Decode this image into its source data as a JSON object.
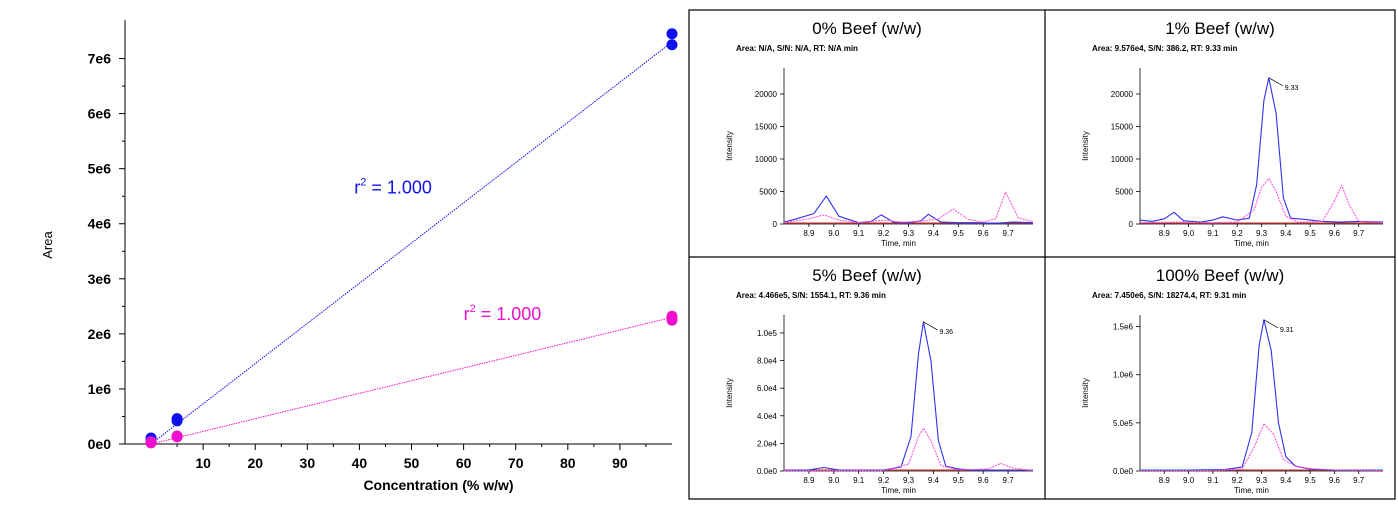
{
  "chart_data": [
    {
      "type": "scatter",
      "title": "",
      "xlabel": "Concentration (% w/w)",
      "ylabel": "Area",
      "xlim": [
        -5,
        100
      ],
      "ylim": [
        0,
        7700000
      ],
      "x_ticks": [
        10,
        20,
        30,
        40,
        50,
        60,
        70,
        80,
        90
      ],
      "y_ticks": [
        {
          "value": 0,
          "label": "0e0"
        },
        {
          "value": 1000000,
          "label": "1e6"
        },
        {
          "value": 2000000,
          "label": "2e6"
        },
        {
          "value": 3000000,
          "label": "3e6"
        },
        {
          "value": 4000000,
          "label": "4e6"
        },
        {
          "value": 5000000,
          "label": "5e6"
        },
        {
          "value": 6000000,
          "label": "6e6"
        },
        {
          "value": 7000000,
          "label": "7e6"
        }
      ],
      "grid": false,
      "series": [
        {
          "color": "#1010ee",
          "points": [
            [
              0,
              60000
            ],
            [
              0,
              110000
            ],
            [
              5,
              420000
            ],
            [
              5,
              460000
            ],
            [
              100,
              7250000
            ],
            [
              100,
              7450000
            ]
          ],
          "fit_line": [
            [
              0,
              0
            ],
            [
              100,
              7300000
            ]
          ],
          "annotation": {
            "text": "r",
            "sup": "2",
            "rest": " = 1.000",
            "x": 39,
            "y": 4550000
          }
        },
        {
          "color": "#ee10cc",
          "points": [
            [
              0,
              20000
            ],
            [
              0,
              40000
            ],
            [
              5,
              130000
            ],
            [
              5,
              145000
            ],
            [
              100,
              2250000
            ],
            [
              100,
              2320000
            ]
          ],
          "fit_line": [
            [
              0,
              0
            ],
            [
              100,
              2300000
            ]
          ],
          "annotation": {
            "text": "r",
            "sup": "2",
            "rest": " = 1.000",
            "x": 60,
            "y": 2250000
          }
        }
      ]
    },
    {
      "type": "line",
      "title": "0% Beef (w/w)",
      "info": "Area: N/A, S/N: N/A, RT: N/A min",
      "xlabel": "Time, min",
      "ylabel": "Intensity",
      "xlim": [
        8.8,
        9.8
      ],
      "ylim": [
        0,
        24000
      ],
      "x_ticks": [
        "8.9",
        "9.0",
        "9.1",
        "9.2",
        "9.3",
        "9.4",
        "9.5",
        "9.6",
        "9.7"
      ],
      "y_ticks": [
        {
          "value": 0,
          "label": "0"
        },
        {
          "value": 5000,
          "label": "5000"
        },
        {
          "value": 10000,
          "label": "10000"
        },
        {
          "value": 15000,
          "label": "15000"
        },
        {
          "value": 20000,
          "label": "20000"
        }
      ],
      "peak_label": "",
      "series": [
        {
          "color": "#3030ee",
          "points": [
            [
              8.8,
              300
            ],
            [
              8.85,
              800
            ],
            [
              8.92,
              1600
            ],
            [
              8.97,
              4300
            ],
            [
              9.02,
              1200
            ],
            [
              9.1,
              200
            ],
            [
              9.15,
              400
            ],
            [
              9.19,
              1400
            ],
            [
              9.24,
              300
            ],
            [
              9.3,
              200
            ],
            [
              9.35,
              500
            ],
            [
              9.38,
              1500
            ],
            [
              9.43,
              300
            ],
            [
              9.5,
              200
            ],
            [
              9.58,
              200
            ],
            [
              9.65,
              100
            ],
            [
              9.72,
              300
            ],
            [
              9.8,
              200
            ]
          ]
        },
        {
          "color": "#ff55dd",
          "dashed": true,
          "points": [
            [
              8.8,
              200
            ],
            [
              8.9,
              800
            ],
            [
              8.96,
              1400
            ],
            [
              9.02,
              600
            ],
            [
              9.1,
              200
            ],
            [
              9.2,
              600
            ],
            [
              9.27,
              300
            ],
            [
              9.35,
              400
            ],
            [
              9.42,
              800
            ],
            [
              9.48,
              2300
            ],
            [
              9.54,
              700
            ],
            [
              9.6,
              300
            ],
            [
              9.65,
              800
            ],
            [
              9.69,
              4900
            ],
            [
              9.74,
              1000
            ],
            [
              9.8,
              300
            ]
          ]
        }
      ]
    },
    {
      "type": "line",
      "title": "1% Beef (w/w)",
      "info": "Area: 9.576e4, S/N: 386.2, RT: 9.33 min",
      "xlabel": "Time, min",
      "ylabel": "Intensity",
      "xlim": [
        8.8,
        9.8
      ],
      "ylim": [
        0,
        24000
      ],
      "x_ticks": [
        "8.9",
        "9.0",
        "9.1",
        "9.2",
        "9.3",
        "9.4",
        "9.5",
        "9.6",
        "9.7"
      ],
      "y_ticks": [
        {
          "value": 0,
          "label": "0"
        },
        {
          "value": 5000,
          "label": "5000"
        },
        {
          "value": 10000,
          "label": "10000"
        },
        {
          "value": 15000,
          "label": "15000"
        },
        {
          "value": 20000,
          "label": "20000"
        }
      ],
      "peak_label": "9.33",
      "peak": {
        "x": 9.33,
        "y": 22500
      },
      "series": [
        {
          "color": "#3030ee",
          "points": [
            [
              8.8,
              600
            ],
            [
              8.85,
              400
            ],
            [
              8.9,
              800
            ],
            [
              8.94,
              1800
            ],
            [
              8.98,
              500
            ],
            [
              9.05,
              300
            ],
            [
              9.1,
              600
            ],
            [
              9.14,
              1100
            ],
            [
              9.2,
              600
            ],
            [
              9.25,
              900
            ],
            [
              9.28,
              6000
            ],
            [
              9.31,
              19000
            ],
            [
              9.33,
              22500
            ],
            [
              9.36,
              17000
            ],
            [
              9.39,
              4000
            ],
            [
              9.42,
              900
            ],
            [
              9.48,
              700
            ],
            [
              9.55,
              400
            ],
            [
              9.62,
              300
            ],
            [
              9.7,
              400
            ],
            [
              9.8,
              300
            ]
          ]
        },
        {
          "color": "#ff55dd",
          "dashed": true,
          "points": [
            [
              8.8,
              200
            ],
            [
              8.95,
              300
            ],
            [
              9.1,
              200
            ],
            [
              9.2,
              300
            ],
            [
              9.27,
              2200
            ],
            [
              9.3,
              5600
            ],
            [
              9.33,
              7000
            ],
            [
              9.36,
              5000
            ],
            [
              9.4,
              1200
            ],
            [
              9.45,
              300
            ],
            [
              9.55,
              400
            ],
            [
              9.6,
              3500
            ],
            [
              9.63,
              6000
            ],
            [
              9.66,
              3000
            ],
            [
              9.7,
              400
            ],
            [
              9.8,
              200
            ]
          ]
        }
      ]
    },
    {
      "type": "line",
      "title": "5% Beef (w/w)",
      "info": "Area: 4.466e5, S/N: 1554.1, RT: 9.36 min",
      "xlabel": "Time, min",
      "ylabel": "Intensity",
      "xlim": [
        8.8,
        9.8
      ],
      "ylim": [
        0,
        113000
      ],
      "x_ticks": [
        "8.9",
        "9.0",
        "9.1",
        "9.2",
        "9.3",
        "9.4",
        "9.5",
        "9.6",
        "9.7"
      ],
      "y_ticks": [
        {
          "value": 0,
          "label": "0.0e0"
        },
        {
          "value": 20000,
          "label": "2.0e4"
        },
        {
          "value": 40000,
          "label": "4.0e4"
        },
        {
          "value": 60000,
          "label": "6.0e4"
        },
        {
          "value": 80000,
          "label": "8.0e4"
        },
        {
          "value": 100000,
          "label": "1.0e5"
        }
      ],
      "peak_label": "9.36",
      "peak": {
        "x": 9.36,
        "y": 108000
      },
      "series": [
        {
          "color": "#3030ee",
          "points": [
            [
              8.8,
              500
            ],
            [
              8.9,
              800
            ],
            [
              8.96,
              2500
            ],
            [
              9.02,
              700
            ],
            [
              9.1,
              500
            ],
            [
              9.2,
              700
            ],
            [
              9.27,
              3000
            ],
            [
              9.31,
              25000
            ],
            [
              9.34,
              85000
            ],
            [
              9.36,
              108000
            ],
            [
              9.39,
              80000
            ],
            [
              9.42,
              22000
            ],
            [
              9.45,
              3500
            ],
            [
              9.5,
              1500
            ],
            [
              9.55,
              800
            ],
            [
              9.65,
              600
            ],
            [
              9.8,
              500
            ]
          ]
        },
        {
          "color": "#ff55dd",
          "dashed": true,
          "points": [
            [
              8.8,
              200
            ],
            [
              9.0,
              300
            ],
            [
              9.2,
              300
            ],
            [
              9.3,
              5000
            ],
            [
              9.34,
              25000
            ],
            [
              9.36,
              31000
            ],
            [
              9.39,
              22000
            ],
            [
              9.43,
              4000
            ],
            [
              9.5,
              800
            ],
            [
              9.62,
              1500
            ],
            [
              9.67,
              5500
            ],
            [
              9.72,
              2000
            ],
            [
              9.8,
              300
            ]
          ]
        }
      ]
    },
    {
      "type": "line",
      "title": "100% Beef (w/w)",
      "info": "Area: 7.450e6, S/N: 18274.4, RT: 9.31 min",
      "xlabel": "Time, min",
      "ylabel": "Intensity",
      "xlim": [
        8.8,
        9.8
      ],
      "ylim": [
        0,
        1620000
      ],
      "x_ticks": [
        "8.9",
        "9.0",
        "9.1",
        "9.2",
        "9.3",
        "9.4",
        "9.5",
        "9.6",
        "9.7"
      ],
      "y_ticks": [
        {
          "value": 0,
          "label": "0.0e0"
        },
        {
          "value": 500000,
          "label": "5.0e5"
        },
        {
          "value": 1000000,
          "label": "1.0e6"
        },
        {
          "value": 1500000,
          "label": "1.5e6"
        }
      ],
      "peak_label": "9.31",
      "peak": {
        "x": 9.31,
        "y": 1570000
      },
      "series": [
        {
          "color": "#3030ee",
          "points": [
            [
              8.8,
              10000
            ],
            [
              9.0,
              10000
            ],
            [
              9.15,
              15000
            ],
            [
              9.22,
              40000
            ],
            [
              9.26,
              400000
            ],
            [
              9.29,
              1300000
            ],
            [
              9.31,
              1570000
            ],
            [
              9.34,
              1250000
            ],
            [
              9.37,
              500000
            ],
            [
              9.4,
              150000
            ],
            [
              9.44,
              50000
            ],
            [
              9.5,
              20000
            ],
            [
              9.6,
              10000
            ],
            [
              9.8,
              10000
            ]
          ]
        },
        {
          "color": "#ff55dd",
          "dashed": true,
          "points": [
            [
              8.8,
              5000
            ],
            [
              9.1,
              5000
            ],
            [
              9.22,
              20000
            ],
            [
              9.27,
              250000
            ],
            [
              9.31,
              490000
            ],
            [
              9.35,
              380000
            ],
            [
              9.39,
              120000
            ],
            [
              9.44,
              50000
            ],
            [
              9.5,
              25000
            ],
            [
              9.6,
              10000
            ],
            [
              9.8,
              5000
            ]
          ]
        }
      ]
    }
  ]
}
